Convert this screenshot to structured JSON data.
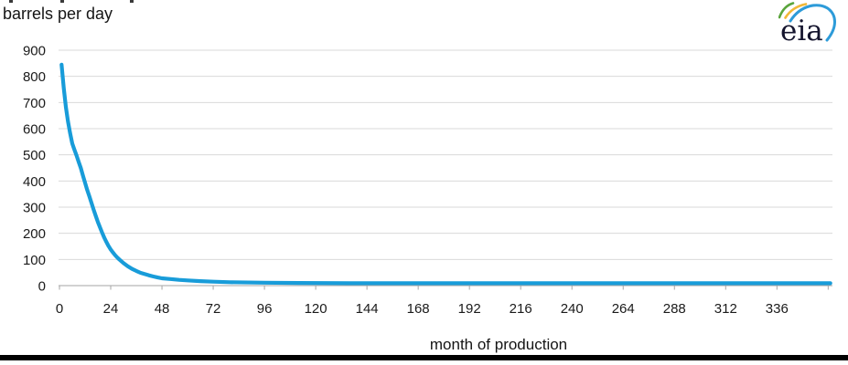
{
  "logo": {
    "text": "eia"
  },
  "colors": {
    "background": "#ffffff",
    "curve": "#189cd9",
    "grid": "#d9d9d9",
    "axis": "#a6a6a6",
    "text": "#1a1a1a",
    "logo_text": "#15152e",
    "logo_blue": "#2d9bd9",
    "logo_green": "#5aa53c",
    "logo_yellow": "#f1b837",
    "bottom_bar": "#000000"
  },
  "chart_data": {
    "type": "line",
    "title": "",
    "xlabel": "month of production",
    "ylabel": "barrels per day",
    "xlim": [
      0,
      362
    ],
    "ylim": [
      0,
      900
    ],
    "x_ticks": [
      0,
      24,
      48,
      72,
      96,
      120,
      144,
      168,
      192,
      216,
      240,
      264,
      288,
      312,
      336
    ],
    "x_ticks_unlabeled": [
      360
    ],
    "y_ticks": [
      0,
      100,
      200,
      300,
      400,
      500,
      600,
      700,
      800,
      900
    ],
    "grid": "horizontal-only",
    "legend_position": "none",
    "series": [
      {
        "color": "#189cd9",
        "points": [
          [
            1,
            845
          ],
          [
            2,
            755
          ],
          [
            3,
            683
          ],
          [
            4,
            628
          ],
          [
            5,
            582
          ],
          [
            6,
            543
          ],
          [
            7,
            520
          ],
          [
            8,
            497
          ],
          [
            9,
            473
          ],
          [
            10,
            450
          ],
          [
            11,
            420
          ],
          [
            12,
            393
          ],
          [
            13,
            366
          ],
          [
            14,
            341
          ],
          [
            15,
            316
          ],
          [
            16,
            291
          ],
          [
            17,
            266
          ],
          [
            18,
            243
          ],
          [
            19,
            222
          ],
          [
            20,
            202
          ],
          [
            21,
            183
          ],
          [
            22,
            166
          ],
          [
            23,
            151
          ],
          [
            24,
            138
          ],
          [
            25,
            127
          ],
          [
            26,
            117
          ],
          [
            27,
            108
          ],
          [
            28,
            100
          ],
          [
            30,
            86
          ],
          [
            32,
            74
          ],
          [
            34,
            64
          ],
          [
            36,
            56
          ],
          [
            38,
            49
          ],
          [
            40,
            44
          ],
          [
            42,
            39
          ],
          [
            44,
            35
          ],
          [
            46,
            31
          ],
          [
            48,
            28
          ],
          [
            52,
            25
          ],
          [
            56,
            22
          ],
          [
            60,
            20
          ],
          [
            66,
            17
          ],
          [
            72,
            15
          ],
          [
            80,
            13
          ],
          [
            96,
            11
          ],
          [
            112,
            10
          ],
          [
            136,
            9
          ],
          [
            168,
            9
          ],
          [
            200,
            9
          ],
          [
            240,
            9
          ],
          [
            280,
            9
          ],
          [
            320,
            9
          ],
          [
            361,
            9
          ]
        ]
      }
    ]
  }
}
